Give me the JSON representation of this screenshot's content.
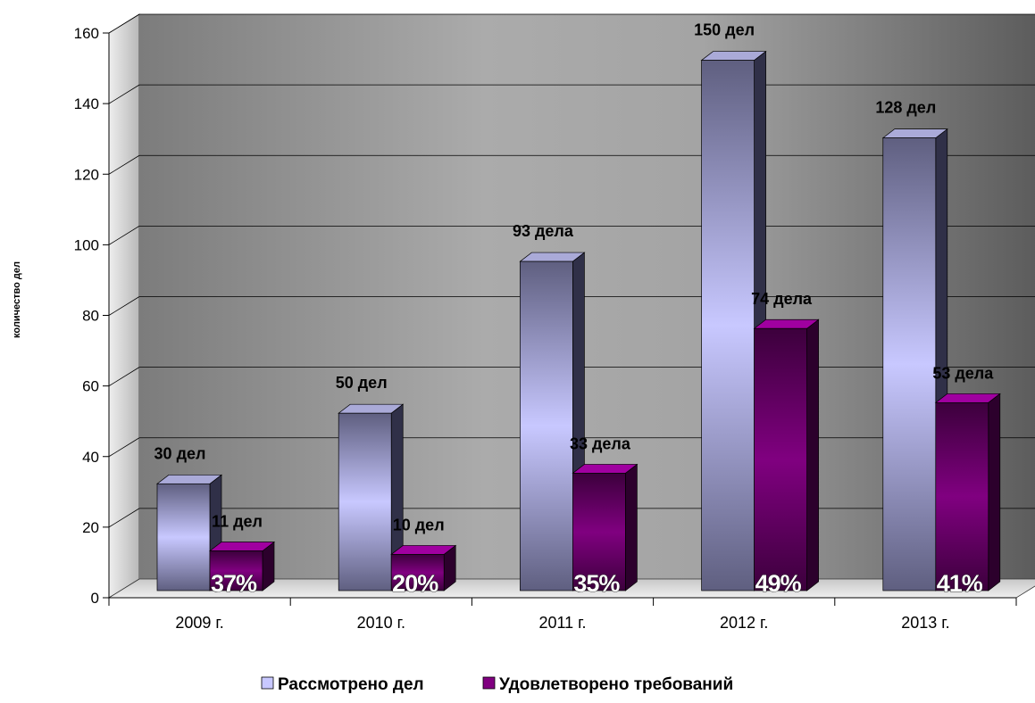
{
  "chart_data": {
    "type": "bar",
    "title": "",
    "xlabel": "",
    "ylabel": "количество дел",
    "categories": [
      "2009 г.",
      "2010 г.",
      "2011 г.",
      "2012 г.",
      "2013 г."
    ],
    "ylim": [
      0,
      160
    ],
    "yticks": [
      "0",
      "20",
      "40",
      "60",
      "80",
      "100",
      "120",
      "140",
      "160"
    ],
    "grid": true,
    "legend_position": "bottom",
    "series": [
      {
        "name": "Рассмотрено дел",
        "values": [
          30,
          50,
          93,
          150,
          128
        ],
        "labels": [
          "30 дел",
          "50 дел",
          "93 дела",
          "150 дел",
          "128 дел"
        ],
        "color": "#c8c8ff"
      },
      {
        "name": "Удовлетворено требований",
        "values": [
          11,
          10,
          33,
          74,
          53
        ],
        "labels": [
          "11 дел",
          "10 дел",
          "33 дела",
          "74 дела",
          "53 дела"
        ],
        "percent_labels": [
          "37%",
          "20%",
          "35%",
          "49%",
          "41%"
        ],
        "color": "#800080"
      }
    ]
  }
}
